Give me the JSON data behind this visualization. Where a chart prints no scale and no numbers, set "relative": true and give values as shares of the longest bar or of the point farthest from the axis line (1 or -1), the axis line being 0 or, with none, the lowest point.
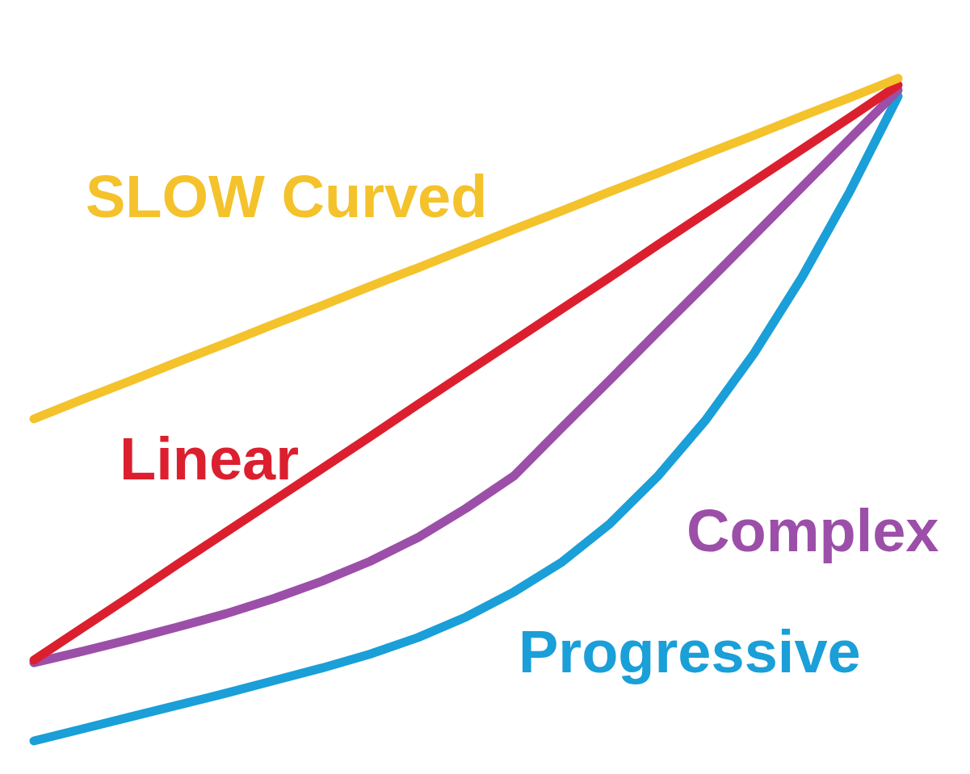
{
  "chart_data": {
    "type": "line",
    "relative": true,
    "marker": "none",
    "line_style": "solid",
    "categories": [
      null,
      null,
      null,
      null,
      null,
      null,
      null,
      null,
      null,
      null,
      null,
      null,
      null,
      null,
      null,
      null,
      null,
      null,
      null
    ],
    "series": [
      {
        "name": "SLOW Curved",
        "color": "#f4c22b",
        "values": [
          0.486,
          0.515,
          0.543,
          0.572,
          0.6,
          0.629,
          0.657,
          0.686,
          0.714,
          0.743,
          0.772,
          0.8,
          0.829,
          0.857,
          0.886,
          0.914,
          0.943,
          0.971,
          1.0
        ]
      },
      {
        "name": "Linear",
        "color": "#dc1f2e",
        "values": [
          0.122,
          0.17,
          0.218,
          0.267,
          0.315,
          0.363,
          0.411,
          0.459,
          0.508,
          0.556,
          0.604,
          0.652,
          0.7,
          0.749,
          0.797,
          0.845,
          0.893,
          0.941,
          0.99
        ]
      },
      {
        "name": "Complex",
        "color": "#9c4fa8",
        "values": [
          0.118,
          0.135,
          0.153,
          0.172,
          0.192,
          0.215,
          0.241,
          0.271,
          0.307,
          0.351,
          0.4,
          0.473,
          0.545,
          0.618,
          0.69,
          0.763,
          0.836,
          0.909,
          0.982
        ]
      },
      {
        "name": "Progressive",
        "color": "#1a9fd8",
        "values": [
          0.0,
          0.018,
          0.036,
          0.054,
          0.072,
          0.091,
          0.11,
          0.131,
          0.156,
          0.187,
          0.225,
          0.27,
          0.328,
          0.4,
          0.485,
          0.585,
          0.7,
          0.83,
          0.973
        ]
      }
    ]
  }
}
